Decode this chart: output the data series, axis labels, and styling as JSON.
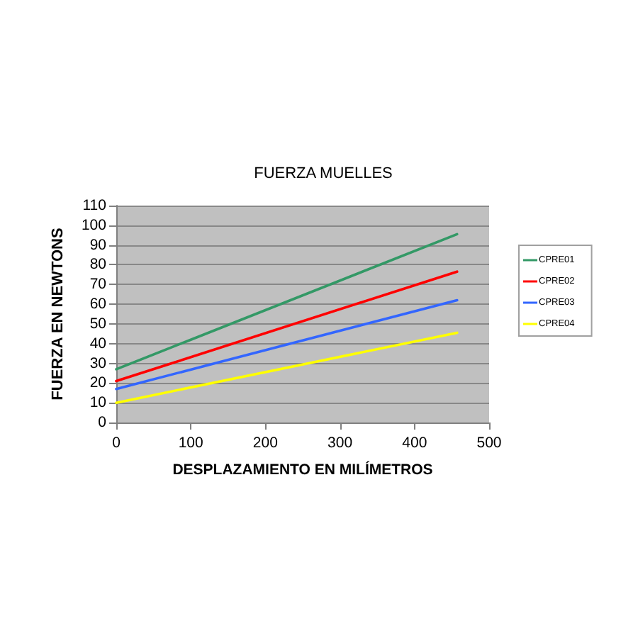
{
  "chart_data": {
    "type": "line",
    "title": "FUERZA MUELLES",
    "xlabel": "DESPLAZAMIENTO EN MILÍMETROS",
    "ylabel": "FUERZA EN NEWTONS",
    "x": [
      0,
      457
    ],
    "series": [
      {
        "name": "CPRE01",
        "color": "#339966",
        "values": [
          27,
          95.5
        ]
      },
      {
        "name": "CPRE02",
        "color": "#ff0000",
        "values": [
          21,
          76.5
        ]
      },
      {
        "name": "CPRE03",
        "color": "#3366ff",
        "values": [
          17,
          62
        ]
      },
      {
        "name": "CPRE04",
        "color": "#ffff00",
        "values": [
          10,
          45.5
        ]
      }
    ],
    "xlim": [
      0,
      500
    ],
    "xticks": [
      0,
      100,
      200,
      300,
      400,
      500
    ],
    "ylim": [
      0,
      110
    ],
    "yticks": [
      0,
      10,
      20,
      30,
      40,
      50,
      60,
      70,
      80,
      90,
      100,
      110
    ],
    "grid": "y",
    "legend": "right",
    "marker": "none",
    "line_style": "solid"
  }
}
